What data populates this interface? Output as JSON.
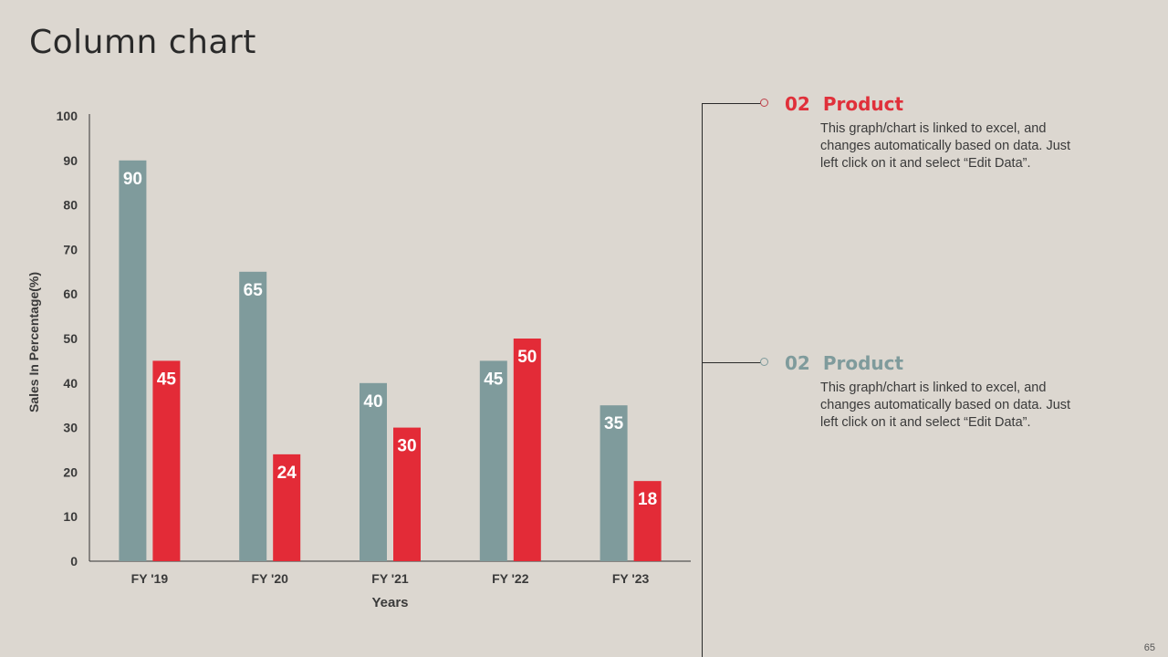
{
  "title": "Column chart",
  "page_number": "65",
  "callouts": [
    {
      "number": "02",
      "heading": "Product",
      "color": "#e0303a",
      "text": "This graph/chart is linked to excel, and changes automatically based on data. Just left click on it and select “Edit Data”."
    },
    {
      "number": "02",
      "heading": "Product",
      "color": "#7f9b9c",
      "text": "This graph/chart is linked to excel, and changes automatically based on data. Just left click on it and select “Edit Data”."
    }
  ],
  "chart_data": {
    "type": "bar",
    "title": "",
    "xlabel": "Years",
    "ylabel": "Sales In Percentage(%)",
    "categories": [
      "FY '19",
      "FY '20",
      "FY '21",
      "FY '22",
      "FY '23"
    ],
    "series": [
      {
        "color": "#7f9b9c",
        "values": [
          90,
          65,
          40,
          45,
          35
        ]
      },
      {
        "color": "#e32b37",
        "values": [
          45,
          24,
          30,
          50,
          18
        ]
      }
    ],
    "ylim": [
      0,
      100
    ],
    "yticks": [
      0,
      10,
      20,
      30,
      40,
      50,
      60,
      70,
      80,
      90,
      100
    ],
    "grid": false,
    "legend": "none"
  }
}
